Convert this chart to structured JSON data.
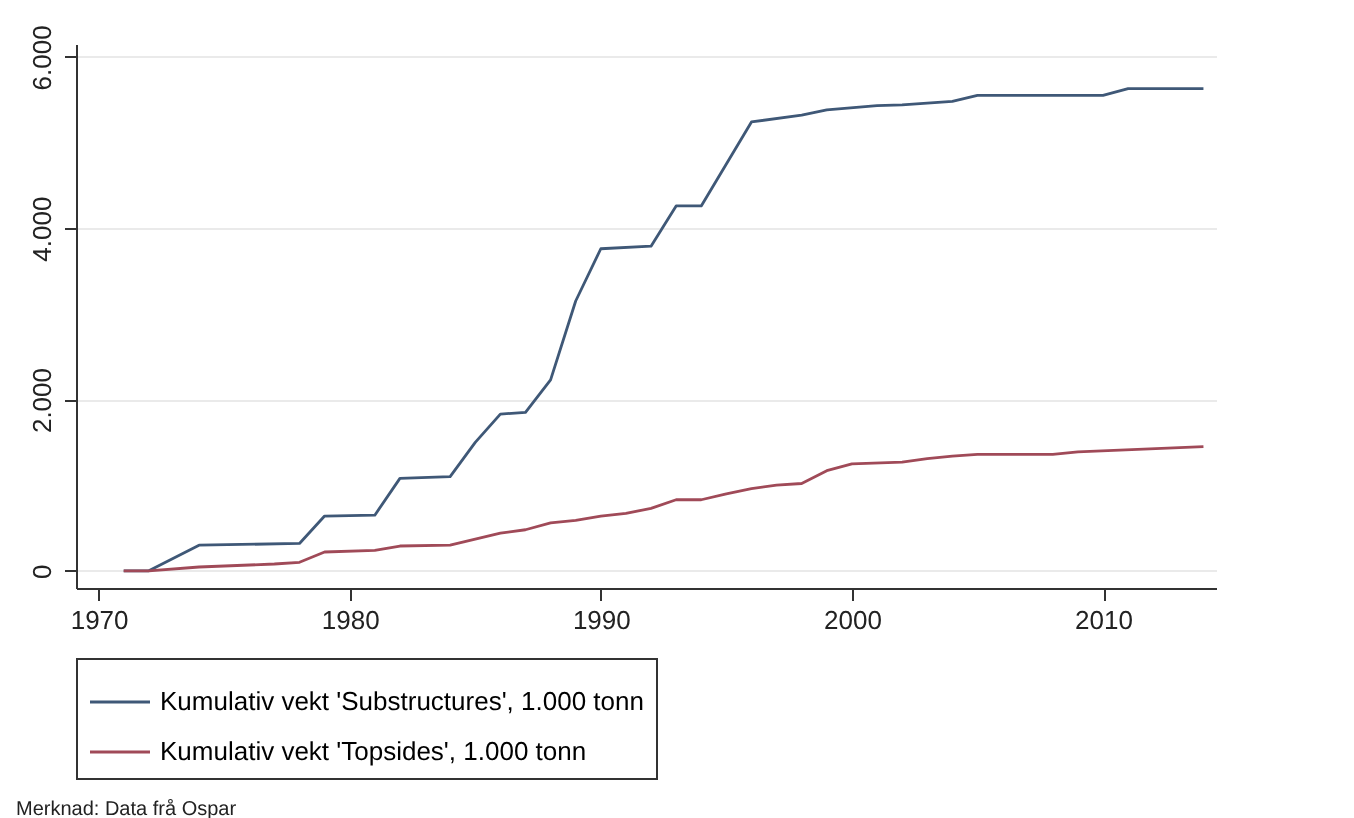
{
  "chart_data": {
    "type": "line",
    "x": [
      1971,
      1972,
      1974,
      1978,
      1979,
      1981,
      1982,
      1984,
      1985,
      1986,
      1987,
      1988,
      1989,
      1990,
      1992,
      1993,
      1994,
      1996,
      1998,
      1999,
      2001,
      2002,
      2004,
      2005,
      2010,
      2011,
      2014
    ],
    "series": [
      {
        "name": "Kumulativ vekt 'Substructures', 1.000 tonn",
        "color": "#3f5877",
        "values": [
          0,
          0,
          300,
          320,
          640,
          650,
          1080,
          1100,
          1500,
          1830,
          1850,
          2230,
          3150,
          3760,
          3790,
          4260,
          4260,
          5240,
          5320,
          5380,
          5430,
          5440,
          5480,
          5550,
          5550,
          5630,
          5630
        ]
      },
      {
        "name": "Kumulativ vekt 'Topsides', 1.000 tonn",
        "x": [
          1971,
          1972,
          1974,
          1977,
          1978,
          1979,
          1981,
          1982,
          1984,
          1986,
          1987,
          1988,
          1989,
          1990,
          1991,
          1992,
          1993,
          1994,
          1995,
          1996,
          1997,
          1998,
          1999,
          2000,
          2002,
          2003,
          2004,
          2005,
          2008,
          2009,
          2014
        ],
        "color": "#a04a58",
        "values": [
          0,
          0,
          45,
          80,
          100,
          220,
          240,
          290,
          300,
          440,
          480,
          560,
          590,
          640,
          670,
          730,
          830,
          830,
          900,
          960,
          1000,
          1020,
          1170,
          1250,
          1270,
          1310,
          1340,
          1360,
          1360,
          1390,
          1450
        ]
      }
    ],
    "xlim": [
      1969.1,
      2014.5
    ],
    "xticks": [
      1970,
      1980,
      1990,
      2000,
      2010
    ],
    "ylim": [
      -200,
      6150
    ],
    "yticks": [
      {
        "value": 0,
        "label": "0"
      },
      {
        "value": 2000,
        "label": "2.000"
      },
      {
        "value": 4000,
        "label": "4.000"
      },
      {
        "value": 6000,
        "label": "6.000"
      }
    ],
    "grid": "y",
    "legend": "bottom",
    "marker": "none",
    "line_style": "solid",
    "annotations": [
      "Merknad: Data frå Ospar"
    ]
  }
}
